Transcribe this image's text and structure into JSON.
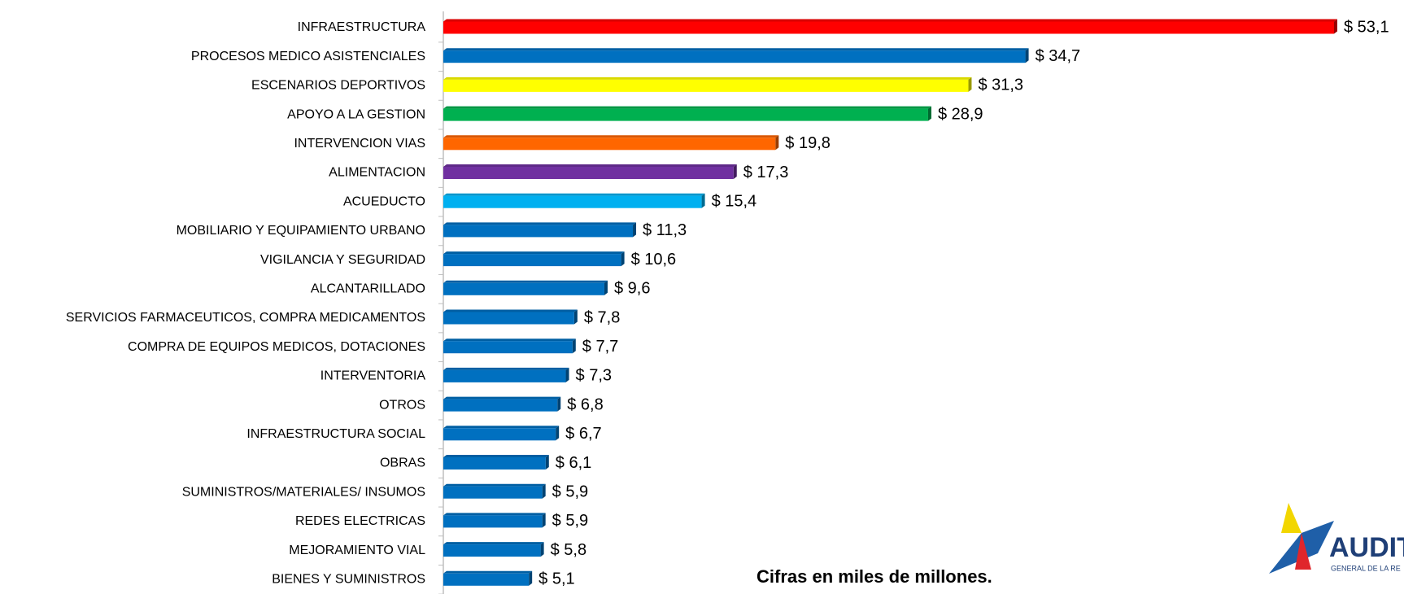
{
  "chart_data": {
    "type": "bar",
    "orientation": "horizontal",
    "categories": [
      "INFRAESTRUCTURA",
      "PROCESOS MEDICO ASISTENCIALES",
      "ESCENARIOS DEPORTIVOS",
      "APOYO A LA GESTION",
      "INTERVENCION VIAS",
      "ALIMENTACION",
      "ACUEDUCTO",
      "MOBILIARIO Y EQUIPAMIENTO URBANO",
      "VIGILANCIA Y SEGURIDAD",
      "ALCANTARILLADO",
      "SERVICIOS FARMACEUTICOS, COMPRA MEDICAMENTOS",
      "COMPRA DE EQUIPOS MEDICOS, DOTACIONES",
      "INTERVENTORIA",
      "OTROS",
      "INFRAESTRUCTURA SOCIAL",
      "OBRAS",
      "SUMINISTROS/MATERIALES/ INSUMOS",
      "REDES ELECTRICAS",
      "MEJORAMIENTO VIAL",
      "BIENES Y SUMINISTROS"
    ],
    "values": [
      53.1,
      34.7,
      31.3,
      28.9,
      19.8,
      17.3,
      15.4,
      11.3,
      10.6,
      9.6,
      7.8,
      7.7,
      7.3,
      6.8,
      6.7,
      6.1,
      5.9,
      5.9,
      5.8,
      5.1
    ],
    "value_labels": [
      "$ 53,1",
      "$ 34,7",
      "$ 31,3",
      "$ 28,9",
      "$ 19,8",
      "$ 17,3",
      "$ 15,4",
      "$ 11,3",
      "$ 10,6",
      "$ 9,6",
      "$ 7,8",
      "$ 7,7",
      "$ 7,3",
      "$ 6,8",
      "$ 6,7",
      "$ 6,1",
      "$ 5,9",
      "$ 5,9",
      "$ 5,8",
      "$ 5,1"
    ],
    "colors": [
      "#ff0000",
      "#0070c0",
      "#ffff00",
      "#00b050",
      "#ff6600",
      "#7030a0",
      "#00b0f0",
      "#0070c0",
      "#0070c0",
      "#0070c0",
      "#0070c0",
      "#0070c0",
      "#0070c0",
      "#0070c0",
      "#0070c0",
      "#0070c0",
      "#0070c0",
      "#0070c0",
      "#0070c0",
      "#0070c0"
    ],
    "annotation": "Cifras en miles de millones."
  },
  "logo": {
    "title": "AUDIT",
    "subtitle": "GENERAL DE LA RE"
  }
}
